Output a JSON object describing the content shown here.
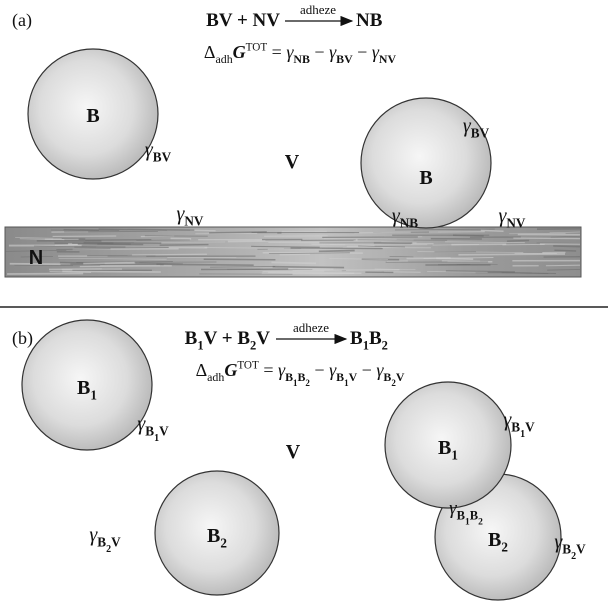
{
  "panels": [
    {
      "tag": "(a)",
      "reaction": {
        "reactants": [
          {
            "text": "BV + NV"
          }
        ],
        "arrow_label": "adheze",
        "product": [
          {
            "text": "NB"
          }
        ]
      },
      "equation": [
        {
          "text": "Δ"
        },
        {
          "text": "adh",
          "sub": 1
        },
        {
          "text": "G",
          "italic": true,
          "bold": true
        },
        {
          "text": "TOT",
          "sup": true
        },
        {
          "text": " = "
        },
        {
          "text": "γ",
          "italic": true
        },
        {
          "text": "NB",
          "sub": 1,
          "bold": true
        },
        {
          "text": " − "
        },
        {
          "text": "γ",
          "italic": true
        },
        {
          "text": "BV",
          "sub": 1,
          "bold": true
        },
        {
          "text": " − "
        },
        {
          "text": "γ",
          "italic": true
        },
        {
          "text": "NV",
          "sub": 1,
          "bold": true
        }
      ],
      "labels": [
        [
          {
            "text": "B",
            "bold": true
          }
        ],
        [
          {
            "text": "γ",
            "italic": true
          },
          {
            "text": "BV",
            "sub": 1,
            "bold": true
          }
        ],
        [
          {
            "text": "V",
            "bold": true
          }
        ],
        [
          {
            "text": "B",
            "bold": true
          }
        ],
        [
          {
            "text": "γ",
            "italic": true
          },
          {
            "text": "BV",
            "sub": 1,
            "bold": true
          }
        ],
        [
          {
            "text": "γ",
            "italic": true
          },
          {
            "text": "NV",
            "sub": 1,
            "bold": true
          }
        ],
        [
          {
            "text": "γ",
            "italic": true
          },
          {
            "text": "NB",
            "sub": 1,
            "bold": true
          }
        ],
        [
          {
            "text": "γ",
            "italic": true
          },
          {
            "text": "NV",
            "sub": 1,
            "bold": true
          }
        ],
        [
          {
            "text": "N",
            "bold": true
          }
        ]
      ]
    },
    {
      "tag": "(b)",
      "reaction": {
        "reactants": [
          {
            "text": "B"
          },
          {
            "text": "1",
            "sub": 1
          },
          {
            "text": "V + B"
          },
          {
            "text": "2",
            "sub": 1
          },
          {
            "text": "V"
          }
        ],
        "arrow_label": "adheze",
        "product": [
          {
            "text": "B"
          },
          {
            "text": "1",
            "sub": 1
          },
          {
            "text": "B"
          },
          {
            "text": "2",
            "sub": 1
          }
        ]
      },
      "equation": [
        {
          "text": "Δ"
        },
        {
          "text": "adh",
          "sub": 1
        },
        {
          "text": "G",
          "italic": true,
          "bold": true
        },
        {
          "text": "TOT",
          "sup": true
        },
        {
          "text": " = "
        },
        {
          "text": "γ",
          "italic": true
        },
        {
          "text": "B",
          "sub": 1,
          "bold": true
        },
        {
          "text": "1",
          "sub": 2,
          "bold": true
        },
        {
          "text": "B",
          "sub": 1,
          "bold": true
        },
        {
          "text": "2",
          "sub": 2,
          "bold": true
        },
        {
          "text": " − "
        },
        {
          "text": "γ",
          "italic": true
        },
        {
          "text": "B",
          "sub": 1,
          "bold": true
        },
        {
          "text": "1",
          "sub": 2,
          "bold": true
        },
        {
          "text": "V",
          "sub": 1,
          "bold": true
        },
        {
          "text": " − "
        },
        {
          "text": "γ",
          "italic": true
        },
        {
          "text": "B",
          "sub": 1,
          "bold": true
        },
        {
          "text": "2",
          "sub": 2,
          "bold": true
        },
        {
          "text": "V",
          "sub": 1,
          "bold": true
        }
      ],
      "labels": [
        [
          {
            "text": "B",
            "bold": true
          },
          {
            "text": "1",
            "sub": 1,
            "bold": true
          }
        ],
        [
          {
            "text": "γ",
            "italic": true
          },
          {
            "text": "B",
            "sub": 1,
            "bold": true
          },
          {
            "text": "1",
            "sub": 2,
            "bold": true
          },
          {
            "text": "V",
            "sub": 1,
            "bold": true
          }
        ],
        [
          {
            "text": "V",
            "bold": true
          }
        ],
        [
          {
            "text": "B",
            "bold": true
          },
          {
            "text": "2",
            "sub": 1,
            "bold": true
          }
        ],
        [
          {
            "text": "γ",
            "italic": true
          },
          {
            "text": "B",
            "sub": 1,
            "bold": true
          },
          {
            "text": "2",
            "sub": 2,
            "bold": true
          },
          {
            "text": "V",
            "sub": 1,
            "bold": true
          }
        ],
        [
          {
            "text": "B",
            "bold": true
          },
          {
            "text": "1",
            "sub": 1,
            "bold": true
          }
        ],
        [
          {
            "text": "γ",
            "italic": true
          },
          {
            "text": "B",
            "sub": 1,
            "bold": true
          },
          {
            "text": "1",
            "sub": 2,
            "bold": true
          },
          {
            "text": "V",
            "sub": 1,
            "bold": true
          }
        ],
        [
          {
            "text": "γ",
            "italic": true
          },
          {
            "text": "B",
            "sub": 1,
            "bold": true
          },
          {
            "text": "1",
            "sub": 2,
            "bold": true
          },
          {
            "text": "B",
            "sub": 1,
            "bold": true
          },
          {
            "text": "2",
            "sub": 2,
            "bold": true
          }
        ],
        [
          {
            "text": "B",
            "bold": true
          },
          {
            "text": "2",
            "sub": 1,
            "bold": true
          }
        ],
        [
          {
            "text": "γ",
            "italic": true
          },
          {
            "text": "B",
            "sub": 1,
            "bold": true
          },
          {
            "text": "2",
            "sub": 2,
            "bold": true
          },
          {
            "text": "V",
            "sub": 1,
            "bold": true
          }
        ]
      ]
    }
  ]
}
